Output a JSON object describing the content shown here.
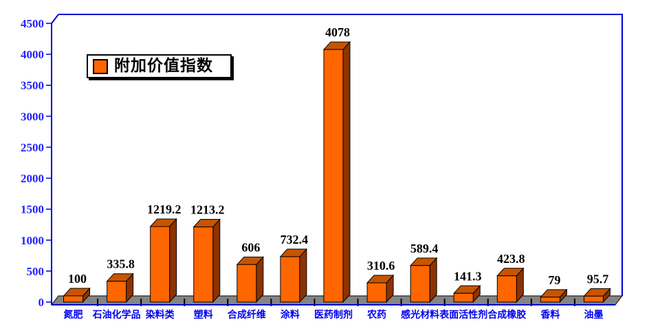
{
  "legend": {
    "label": "附加价值指数",
    "swatch_color": "#FF6600"
  },
  "chart_data": {
    "type": "bar",
    "style": "3d-column",
    "title": "",
    "categories": [
      "氮肥",
      "石油化学品",
      "染料类",
      "塑料",
      "合成纤维",
      "涂料",
      "医药制剂",
      "农药",
      "感光材料",
      "表面活性剂",
      "合成橡胶",
      "香料",
      "油墨"
    ],
    "values": [
      100,
      335.8,
      1219.2,
      1213.2,
      606,
      732.4,
      4078,
      310.6,
      589.4,
      141.3,
      423.8,
      79,
      95.7
    ],
    "value_labels": [
      "100",
      "335.8",
      "1219.2",
      "1213.2",
      "606",
      "732.4",
      "4078",
      "310.6",
      "589.4",
      "141.3",
      "423.8",
      "79",
      "95.7"
    ],
    "series_name": "附加价值指数",
    "yticks": [
      "0",
      "500",
      "1000",
      "1500",
      "2000",
      "2500",
      "3000",
      "3500",
      "4000",
      "4500"
    ],
    "ylim": [
      0,
      4500
    ],
    "ytick_step": 500,
    "xlabel": "",
    "ylabel": "",
    "grid": false,
    "legend_position": "upper-left-inside",
    "colors": {
      "bar_front": "#FF6600",
      "bar_top": "#C75400",
      "bar_side": "#8C3300",
      "axis": "#0000CC",
      "ytick_label": "#2222FF",
      "category_label": "#0000EE",
      "value_label": "#000000",
      "floor": "#848484",
      "outline": "#000000",
      "background": "#FFFFFF"
    }
  }
}
